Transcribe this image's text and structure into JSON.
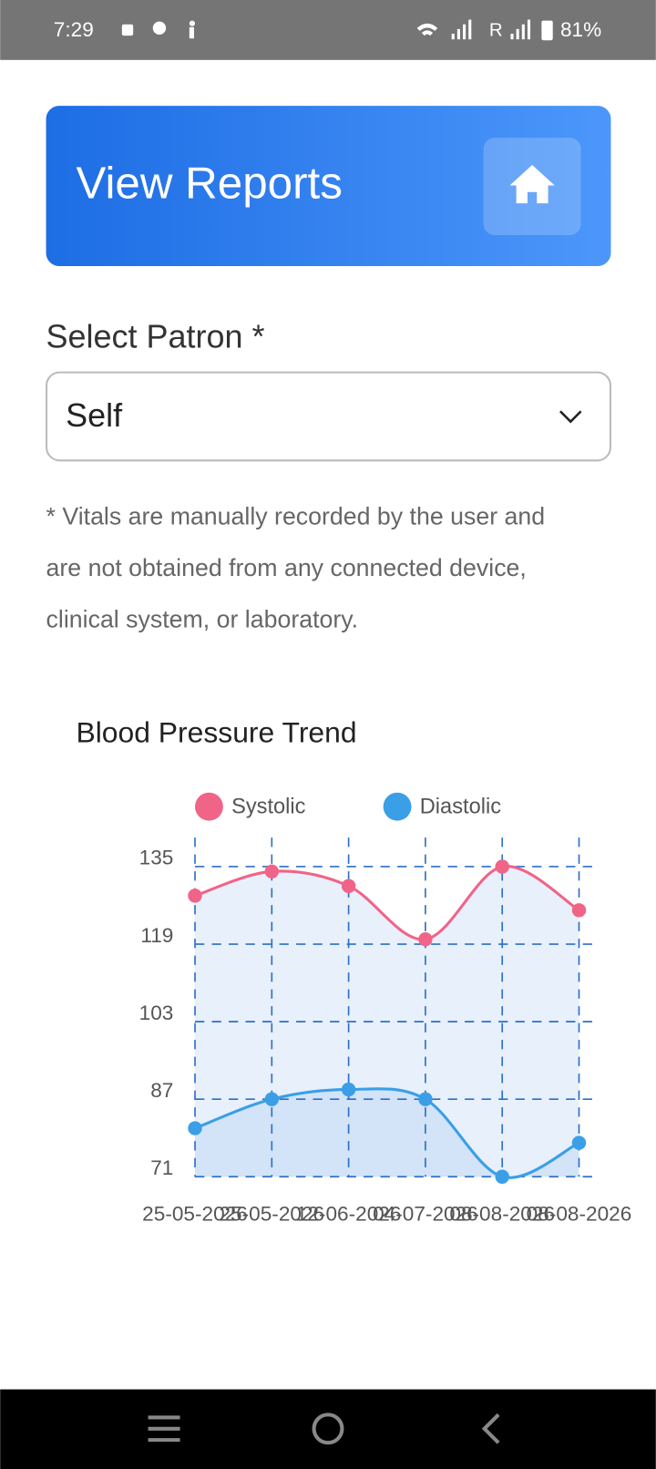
{
  "status_bar": {
    "time": "7:29",
    "network": "R",
    "battery": "81%"
  },
  "header": {
    "title": "View Reports"
  },
  "form": {
    "label": "Select Patron *",
    "selected": "Self"
  },
  "note": [
    "* Vitals are manually recorded by the user and",
    "are not obtained from any connected device,",
    "clinical system, or laboratory."
  ],
  "chart_data": {
    "type": "line",
    "title": "Blood Pressure Trend",
    "categories": [
      "25-05-2026",
      "25-05-2026",
      "12-06-2026",
      "04-07-2026",
      "08-08-2026",
      "08-08-2026"
    ],
    "series": [
      {
        "name": "Systolic",
        "color": "#f06488",
        "values": [
          129,
          134,
          131,
          120,
          135,
          126
        ]
      },
      {
        "name": "Diastolic",
        "color": "#3a9fe6",
        "values": [
          81,
          87,
          89,
          87,
          71,
          78
        ]
      }
    ],
    "ylim": [
      71,
      141
    ],
    "yticks": [
      71,
      87,
      103,
      119,
      135
    ],
    "grid": true
  }
}
